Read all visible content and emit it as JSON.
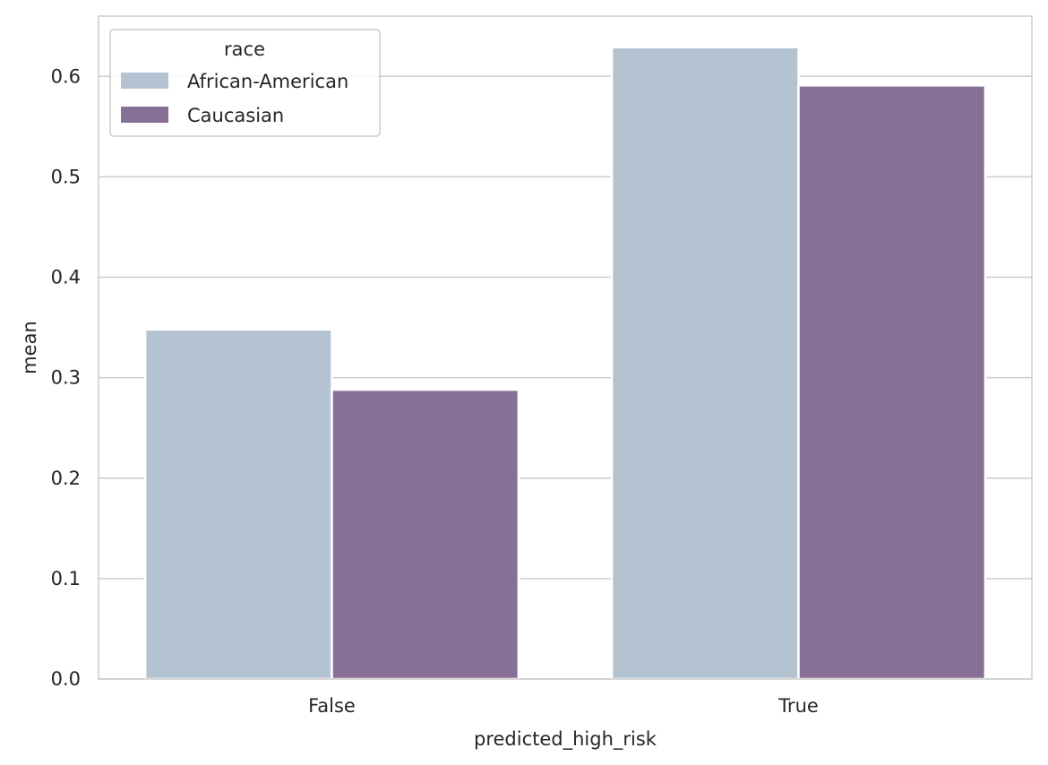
{
  "chart_data": {
    "type": "bar",
    "xlabel": "predicted_high_risk",
    "ylabel": "mean",
    "categories": [
      "False",
      "True"
    ],
    "series": [
      {
        "name": "African-American",
        "color": "#b4c3d1",
        "values": [
          0.348,
          0.629
        ]
      },
      {
        "name": "Caucasian",
        "color": "#876f96",
        "values": [
          0.288,
          0.591
        ]
      }
    ],
    "ylim": [
      0,
      0.66
    ],
    "yticks": [
      0.0,
      0.1,
      0.2,
      0.3,
      0.4,
      0.5,
      0.6
    ],
    "ytick_labels": [
      "0.0",
      "0.1",
      "0.2",
      "0.3",
      "0.4",
      "0.5",
      "0.6"
    ],
    "grid": "horizontal",
    "legend": {
      "title": "race",
      "placement": "upper-left"
    }
  }
}
